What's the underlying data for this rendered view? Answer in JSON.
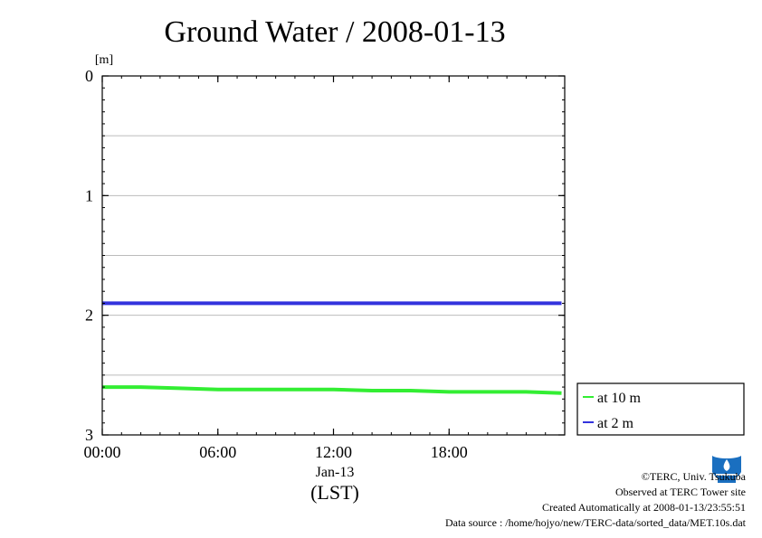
{
  "chart_data": {
    "type": "line",
    "title": "Ground Water / 2008-01-13",
    "ylabel": "[m]",
    "y_inverted": true,
    "ylim": [
      0,
      3
    ],
    "y_ticks": [
      "0",
      "1",
      "2",
      "3"
    ],
    "xlim": [
      "00:00",
      "24:00"
    ],
    "x_ticks": [
      "00:00",
      "06:00",
      "12:00",
      "18:00"
    ],
    "x_date_label": "Jan-13",
    "x_tz_label": "(LST)",
    "grid": true,
    "legend_position": "right-bottom",
    "series": [
      {
        "name": "at 10 m",
        "color": "#33ee33",
        "x": [
          "00:00",
          "02:00",
          "04:00",
          "06:00",
          "08:00",
          "10:00",
          "12:00",
          "14:00",
          "16:00",
          "18:00",
          "20:00",
          "22:00",
          "23:50"
        ],
        "y": [
          2.6,
          2.6,
          2.61,
          2.62,
          2.62,
          2.62,
          2.62,
          2.63,
          2.63,
          2.64,
          2.64,
          2.64,
          2.65
        ]
      },
      {
        "name": "at 2 m",
        "color": "#3333dd",
        "x": [
          "00:00",
          "02:00",
          "04:00",
          "06:00",
          "08:00",
          "10:00",
          "12:00",
          "14:00",
          "16:00",
          "18:00",
          "20:00",
          "22:00",
          "23:50"
        ],
        "y": [
          1.9,
          1.9,
          1.9,
          1.9,
          1.9,
          1.9,
          1.9,
          1.9,
          1.9,
          1.9,
          1.9,
          1.9,
          1.9
        ]
      }
    ]
  },
  "footer": {
    "copyright": "©TERC, Univ. Tsukuba",
    "observed": "Observed at TERC Tower site",
    "created": "Created Automatically at 2008-01-13/23:55:51",
    "source": "Data source : /home/hojyo/new/TERC-data/sorted_data/MET.10s.dat"
  },
  "logo_icon": "terc-logo-icon"
}
